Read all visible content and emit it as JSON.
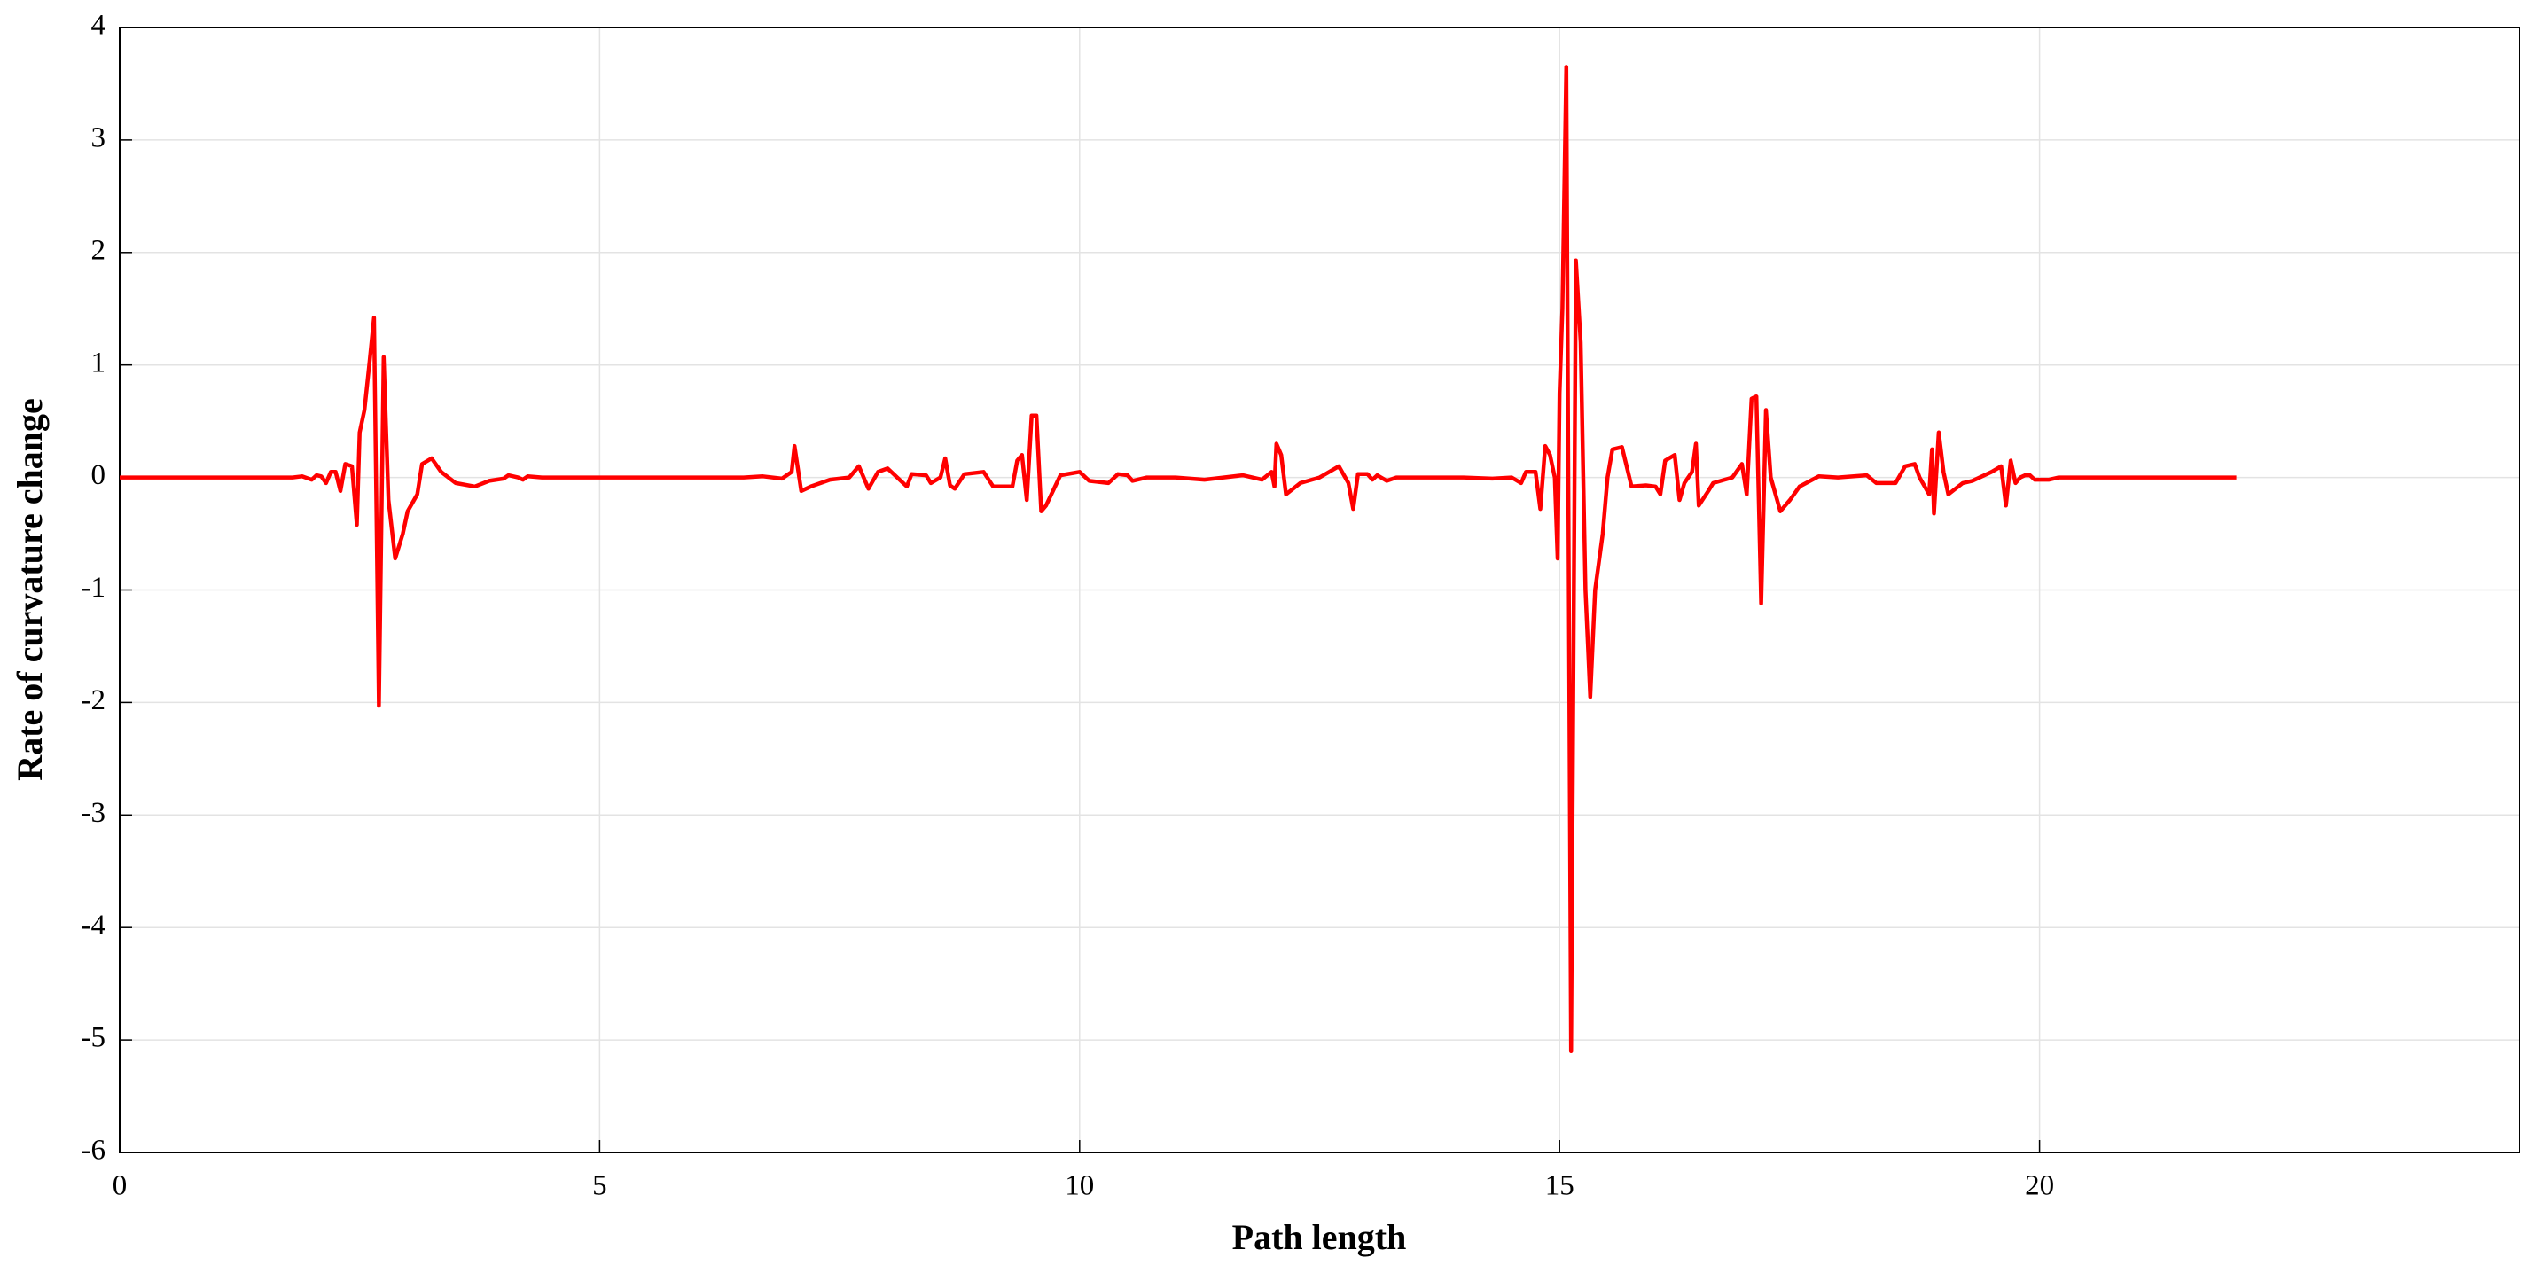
{
  "chart_data": {
    "type": "line",
    "xlabel": "Path length",
    "ylabel": "Rate of curvature change",
    "xlim": [
      0,
      25
    ],
    "ylim": [
      -6,
      4
    ],
    "xticks": [
      0,
      5,
      10,
      15,
      20
    ],
    "yticks": [
      -6,
      -5,
      -4,
      -3,
      -2,
      -1,
      0,
      1,
      2,
      3,
      4
    ],
    "grid": true,
    "x": [
      0,
      1.8,
      1.9,
      2.0,
      2.05,
      2.1,
      2.15,
      2.2,
      2.25,
      2.3,
      2.35,
      2.42,
      2.47,
      2.5,
      2.55,
      2.6,
      2.65,
      2.7,
      2.75,
      2.8,
      2.87,
      2.95,
      3.0,
      3.1,
      3.15,
      3.25,
      3.35,
      3.5,
      3.7,
      3.85,
      4.0,
      4.05,
      4.15,
      4.2,
      4.25,
      4.4,
      6.5,
      6.7,
      6.9,
      7.0,
      7.03,
      7.1,
      7.2,
      7.4,
      7.6,
      7.7,
      7.8,
      7.9,
      8.0,
      8.1,
      8.2,
      8.25,
      8.4,
      8.45,
      8.55,
      8.6,
      8.65,
      8.7,
      8.8,
      9.0,
      9.1,
      9.3,
      9.35,
      9.4,
      9.45,
      9.5,
      9.55,
      9.6,
      9.65,
      9.8,
      10.0,
      10.1,
      10.3,
      10.4,
      10.5,
      10.55,
      10.7,
      11.0,
      11.3,
      11.5,
      11.7,
      11.9,
      12.0,
      12.03,
      12.05,
      12.1,
      12.15,
      12.3,
      12.5,
      12.6,
      12.7,
      12.8,
      12.85,
      12.9,
      13.0,
      13.05,
      13.1,
      13.2,
      13.3,
      14.0,
      14.3,
      14.5,
      14.6,
      14.65,
      14.75,
      14.8,
      14.85,
      14.9,
      14.95,
      14.98,
      15.0,
      15.03,
      15.07,
      15.12,
      15.17,
      15.22,
      15.27,
      15.32,
      15.37,
      15.45,
      15.5,
      15.55,
      15.65,
      15.75,
      15.9,
      16.0,
      16.05,
      16.1,
      16.2,
      16.25,
      16.3,
      16.38,
      16.42,
      16.45,
      16.55,
      16.6,
      16.8,
      16.9,
      16.95,
      17.0,
      17.05,
      17.1,
      17.15,
      17.2,
      17.3,
      17.4,
      17.5,
      17.7,
      17.9,
      18.2,
      18.3,
      18.5,
      18.6,
      18.7,
      18.75,
      18.85,
      18.88,
      18.9,
      18.95,
      19.0,
      19.05,
      19.2,
      19.3,
      19.5,
      19.6,
      19.65,
      19.7,
      19.75,
      19.8,
      19.85,
      19.9,
      19.95,
      20.1,
      20.2,
      22.05
    ],
    "series": [
      {
        "color": "#ff0000",
        "values": [
          0,
          0,
          0.01,
          -0.02,
          0.02,
          0.01,
          -0.05,
          0.05,
          0.05,
          -0.12,
          0.12,
          0.1,
          -0.42,
          0.4,
          0.6,
          1.0,
          1.42,
          -2.03,
          1.07,
          -0.2,
          -0.72,
          -0.5,
          -0.3,
          -0.15,
          0.12,
          0.17,
          0.05,
          -0.05,
          -0.08,
          -0.03,
          -0.01,
          0.02,
          0,
          -0.02,
          0.01,
          0,
          0,
          0.01,
          -0.01,
          0.05,
          0.28,
          -0.12,
          -0.08,
          -0.02,
          0,
          0.1,
          -0.1,
          0.05,
          0.08,
          0,
          -0.08,
          0.03,
          0.02,
          -0.05,
          0,
          0.17,
          -0.07,
          -0.1,
          0.03,
          0.05,
          -0.08,
          -0.08,
          0.15,
          0.2,
          -0.2,
          0.55,
          0.55,
          -0.3,
          -0.25,
          0.02,
          0.05,
          -0.03,
          -0.05,
          0.03,
          0.02,
          -0.03,
          0,
          0,
          -0.02,
          0,
          0.02,
          -0.02,
          0.05,
          -0.08,
          0.3,
          0.2,
          -0.15,
          -0.05,
          0,
          0.05,
          0.1,
          -0.05,
          -0.28,
          0.03,
          0.03,
          -0.02,
          0.02,
          -0.03,
          0,
          0,
          -0.01,
          0,
          -0.05,
          0.05,
          0.05,
          -0.28,
          0.28,
          0.2,
          0,
          -0.72,
          0.75,
          1.5,
          3.65,
          -5.1,
          1.93,
          1.2,
          -1.0,
          -1.95,
          -1.0,
          -0.5,
          0,
          0.25,
          0.27,
          -0.08,
          -0.07,
          -0.08,
          -0.15,
          0.15,
          0.2,
          -0.2,
          -0.05,
          0.05,
          0.3,
          -0.25,
          -0.12,
          -0.05,
          0,
          0.12,
          -0.15,
          0.7,
          0.72,
          -1.12,
          0.6,
          0,
          -0.3,
          -0.2,
          -0.08,
          0.01,
          0,
          0.02,
          -0.05,
          -0.05,
          0.1,
          0.12,
          0,
          -0.15,
          0.25,
          -0.32,
          0.4,
          0.05,
          -0.15,
          -0.05,
          -0.03,
          0.05,
          0.1,
          -0.25,
          0.15,
          -0.05,
          0,
          0.02,
          0.02,
          -0.02,
          -0.02,
          0,
          0
        ]
      }
    ]
  }
}
